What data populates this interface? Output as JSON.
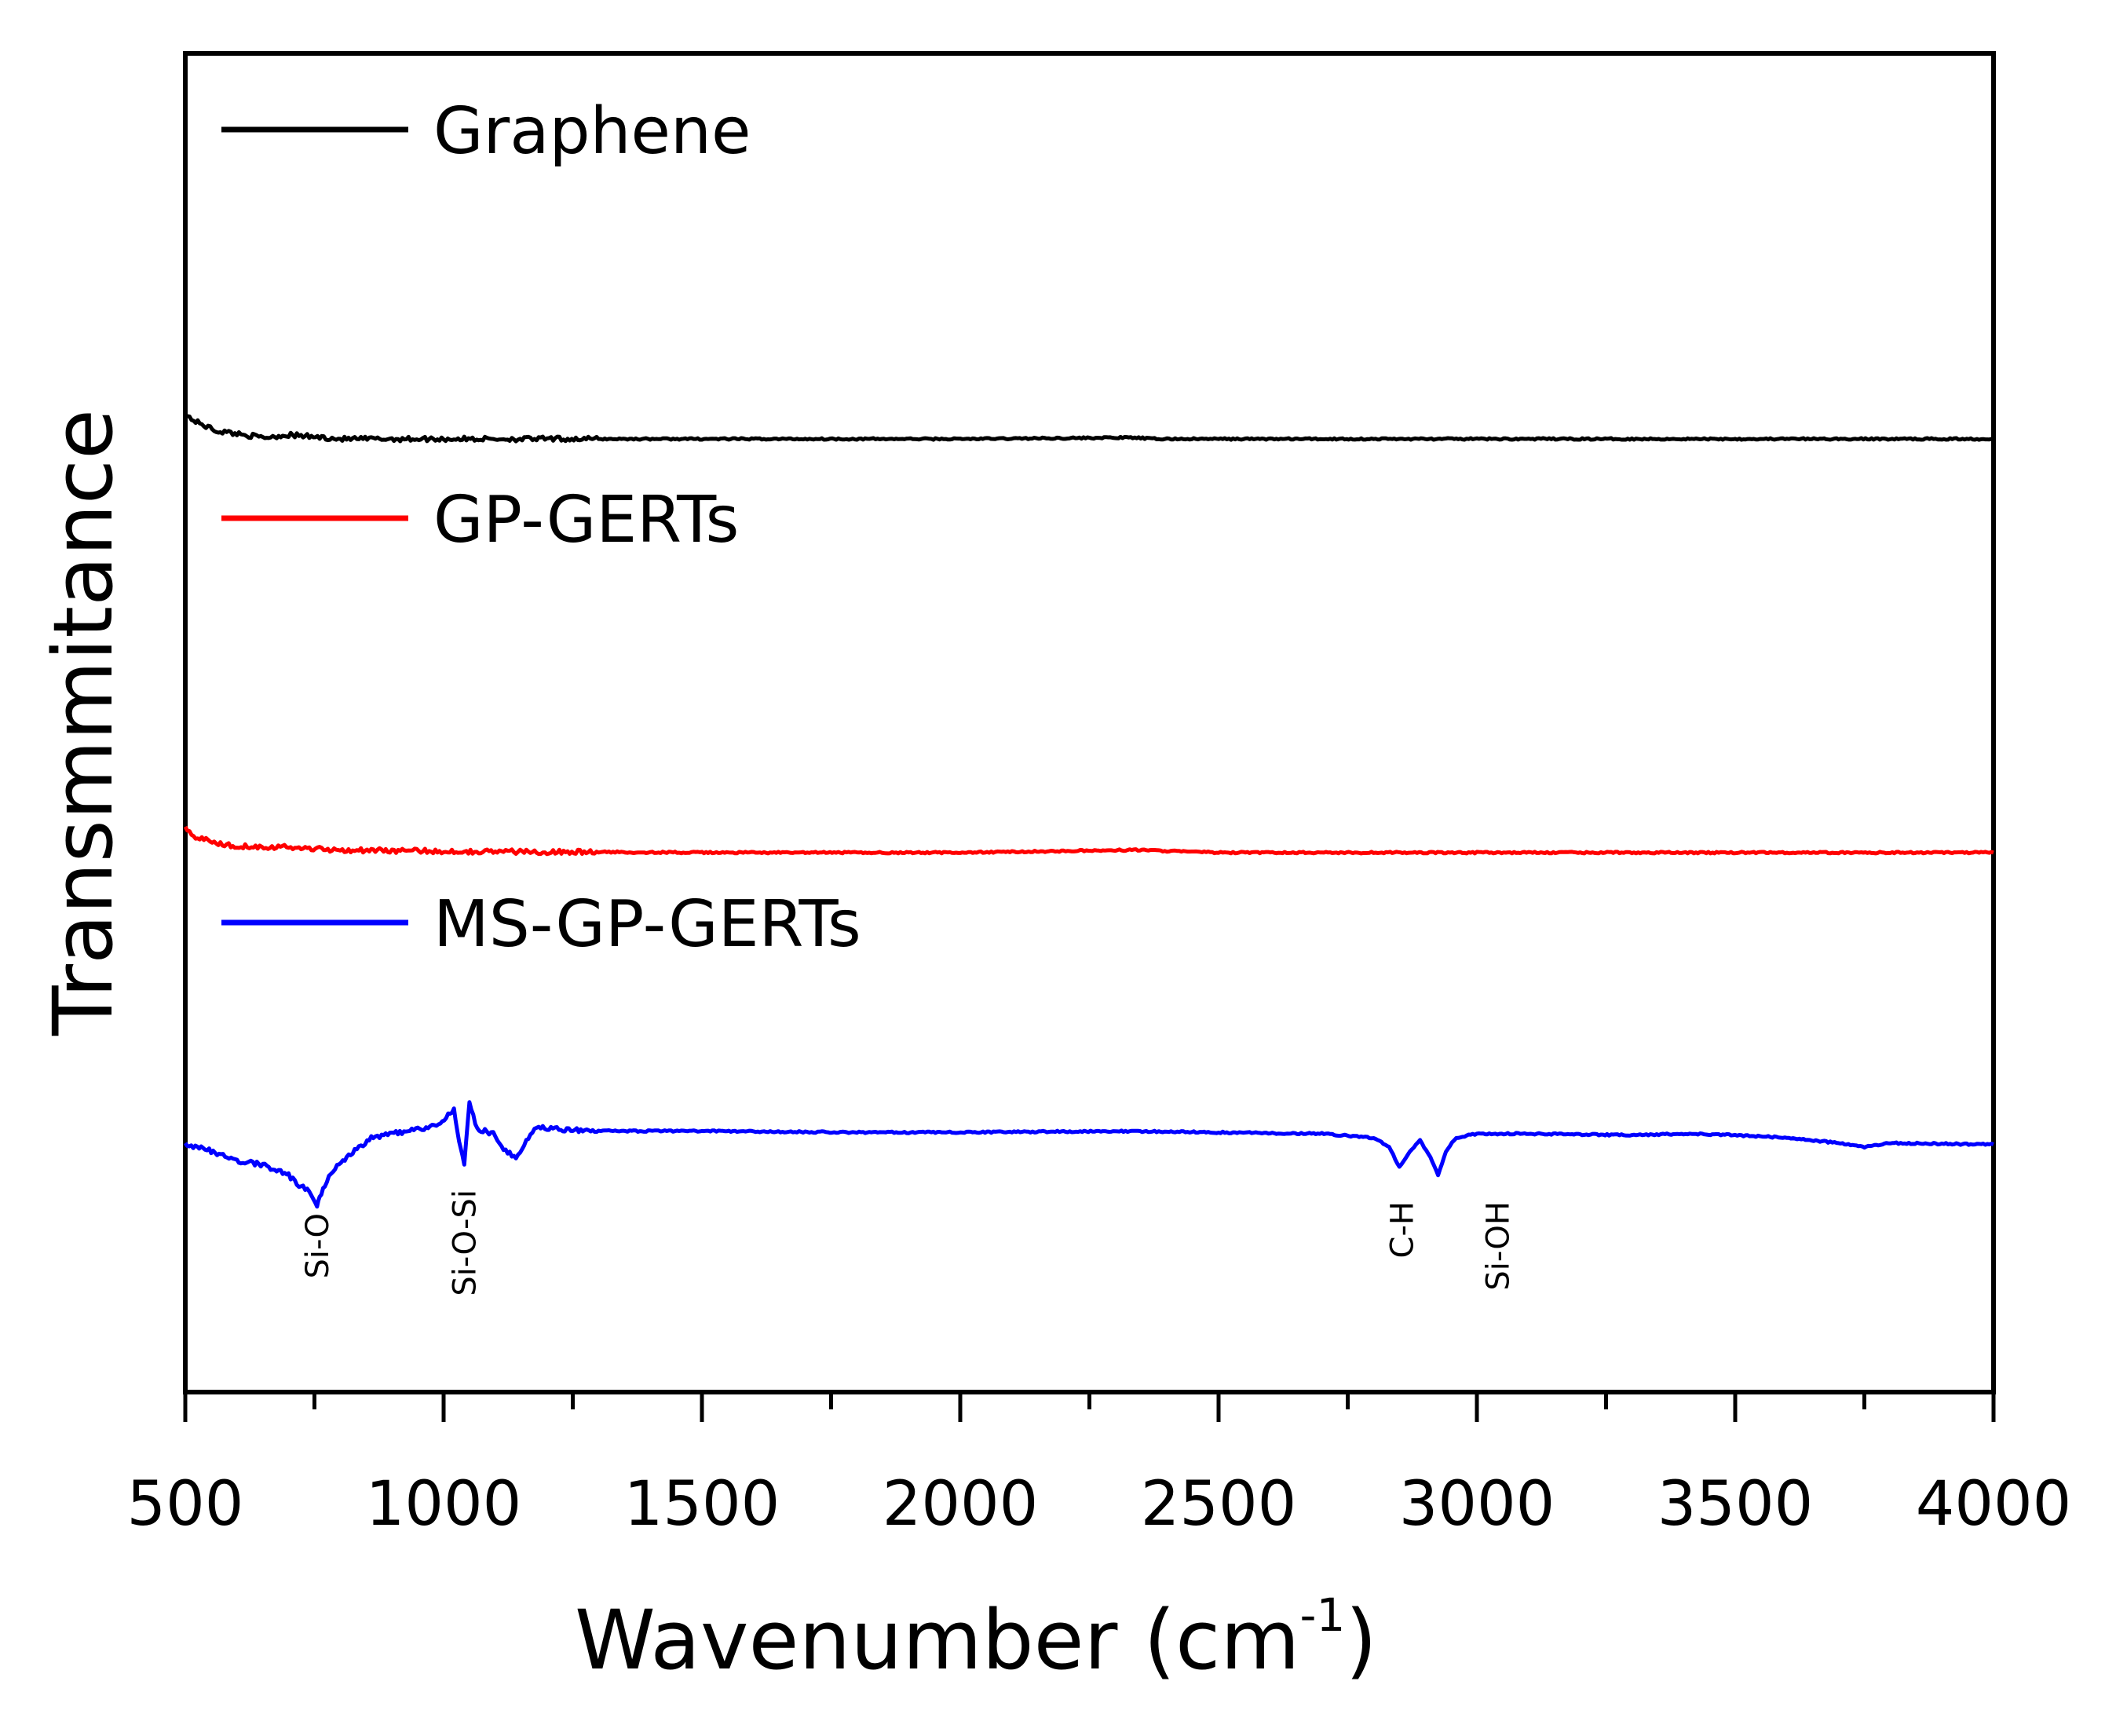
{
  "chart_data": {
    "type": "line",
    "title": "",
    "xlabel": "Wavenumber (cm",
    "xlabel_sup": "-1",
    "xlabel_close": ")",
    "ylabel": "Transmmitance",
    "xlim": [
      500,
      4000
    ],
    "ylim": [
      0,
      10
    ],
    "x_ticks": [
      "500",
      "1000",
      "1500",
      "2000",
      "2500",
      "3000",
      "3500",
      "4000"
    ],
    "grid": false,
    "legend": "inline-left",
    "series": [
      {
        "name": "Graphene",
        "color": "#000000",
        "x": [
          500,
          520,
          560,
          600,
          650,
          700,
          800,
          1000,
          1500,
          2000,
          2330,
          2380,
          2500,
          3000,
          3500,
          4000
        ],
        "y": [
          7.3,
          7.25,
          7.18,
          7.16,
          7.13,
          7.15,
          7.12,
          7.12,
          7.12,
          7.12,
          7.13,
          7.12,
          7.12,
          7.12,
          7.12,
          7.12
        ]
      },
      {
        "name": "GP-GERTs",
        "color": "#ff0000",
        "x": [
          500,
          520,
          560,
          600,
          700,
          800,
          1000,
          1500,
          2000,
          2340,
          2500,
          3000,
          3500,
          4000
        ],
        "y": [
          4.22,
          4.15,
          4.1,
          4.08,
          4.07,
          4.05,
          4.04,
          4.03,
          4.03,
          4.05,
          4.03,
          4.03,
          4.03,
          4.03
        ]
      },
      {
        "name": "MS-GP-GERTs",
        "color": "#0000ff",
        "x": [
          500,
          550,
          600,
          650,
          700,
          720,
          740,
          755,
          760,
          770,
          790,
          820,
          860,
          900,
          950,
          990,
          1005,
          1020,
          1030,
          1040,
          1050,
          1065,
          1080,
          1100,
          1120,
          1140,
          1160,
          1180,
          1200,
          1250,
          1300,
          1500,
          1800,
          2000,
          2300,
          2500,
          2700,
          2800,
          2830,
          2850,
          2870,
          2890,
          2910,
          2925,
          2940,
          2960,
          3000,
          3100,
          3300,
          3400,
          3500,
          3600,
          3700,
          3750,
          3800,
          4000
        ],
        "y": [
          1.85,
          1.8,
          1.73,
          1.7,
          1.62,
          1.55,
          1.5,
          1.38,
          1.45,
          1.55,
          1.68,
          1.78,
          1.9,
          1.93,
          1.96,
          2.0,
          2.05,
          2.12,
          1.88,
          1.7,
          2.15,
          1.97,
          1.95,
          1.92,
          1.8,
          1.75,
          1.88,
          1.98,
          1.97,
          1.96,
          1.95,
          1.95,
          1.94,
          1.94,
          1.95,
          1.94,
          1.93,
          1.9,
          1.83,
          1.68,
          1.8,
          1.88,
          1.75,
          1.62,
          1.8,
          1.9,
          1.93,
          1.93,
          1.92,
          1.93,
          1.92,
          1.9,
          1.86,
          1.83,
          1.86,
          1.85
        ]
      }
    ],
    "annotations": [
      {
        "text": "Si-O",
        "x": 755
      },
      {
        "text": "Si-O-Si",
        "x": 1040
      },
      {
        "text": "C-H",
        "x": 2855
      },
      {
        "text": "Si-OH",
        "x": 3040
      }
    ]
  }
}
